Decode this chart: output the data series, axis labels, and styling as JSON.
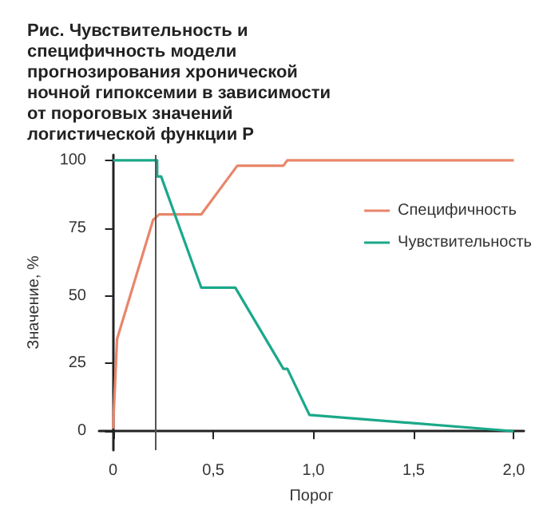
{
  "chart_data": {
    "type": "line",
    "title": "Рис. Чувствительность и специфичность модели прогнозирования хронической ночной гипоксемии в зависимости от пороговых значений логистической функции Р",
    "xlabel": "Порог",
    "ylabel": "Значение, %",
    "series": [
      {
        "name": "Специфичность",
        "color": "#e8866a",
        "x": [
          0,
          0.02,
          0.2,
          0.23,
          0.44,
          0.62,
          0.85,
          0.87,
          2.0
        ],
        "values": [
          1,
          34,
          78,
          80,
          80,
          98,
          98,
          100,
          100
        ]
      },
      {
        "name": "Чувствительность",
        "color": "#1aa88a",
        "x": [
          0,
          0.22,
          0.22,
          0.24,
          0.44,
          0.61,
          0.85,
          0.87,
          0.98,
          2.0
        ],
        "values": [
          100,
          100,
          94,
          94,
          53,
          53,
          23,
          23,
          6,
          0
        ]
      }
    ],
    "xlim": [
      -0.07,
      2.05
    ],
    "xticks": [
      {
        "value": 0,
        "label": "0"
      },
      {
        "value": 0.5,
        "label": "0,5"
      },
      {
        "value": 1,
        "label": "1,0"
      },
      {
        "value": 1.5,
        "label": "1,5"
      },
      {
        "value": 2,
        "label": "2,0"
      }
    ],
    "ylim": [
      -7,
      102
    ],
    "yticks": [
      0,
      25,
      50,
      75,
      100
    ],
    "ref_lines": [
      {
        "axis": "x",
        "value": 0.21,
        "color": "#555555"
      }
    ],
    "grid": false,
    "legend": "right",
    "marker": "none",
    "line_style": "solid"
  }
}
